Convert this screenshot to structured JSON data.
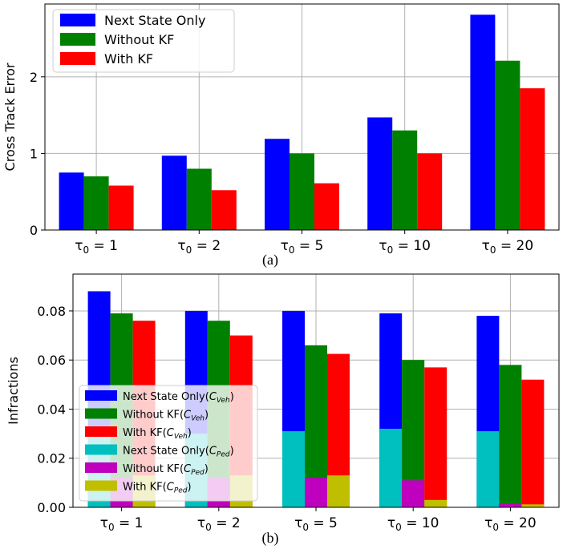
{
  "chart_data": [
    {
      "id": "a",
      "type": "bar",
      "caption": "(a)",
      "title": "",
      "xlabel": "",
      "ylabel": "Cross Track Error",
      "categories": [
        "τ₀ = 1",
        "τ₀ = 2",
        "τ₀ = 5",
        "τ₀ = 10",
        "τ₀ = 20"
      ],
      "ylim": [
        0,
        2.95
      ],
      "yticks": [
        0,
        1,
        2
      ],
      "grid": true,
      "legend_position": "top-left",
      "series": [
        {
          "name": "Next State Only",
          "color": "#0000ff",
          "values": [
            0.75,
            0.97,
            1.19,
            1.47,
            2.81
          ]
        },
        {
          "name": "Without KF",
          "color": "#008000",
          "values": [
            0.7,
            0.8,
            1.0,
            1.3,
            2.21
          ]
        },
        {
          "name": "With KF",
          "color": "#ff0000",
          "values": [
            0.58,
            0.52,
            0.61,
            1.0,
            1.85
          ]
        }
      ]
    },
    {
      "id": "b",
      "type": "bar",
      "caption": "(b)",
      "title": "",
      "xlabel": "",
      "ylabel": "Infractions",
      "categories": [
        "τ₀ = 1",
        "τ₀ = 2",
        "τ₀ = 5",
        "τ₀ = 10",
        "τ₀ = 20"
      ],
      "ylim": [
        0,
        0.095
      ],
      "yticks": [
        0.0,
        0.02,
        0.04,
        0.06,
        0.08
      ],
      "ytick_labels": [
        "0.00",
        "0.02",
        "0.04",
        "0.06",
        "0.08"
      ],
      "grid": true,
      "legend_position": "bottom-left",
      "series": [
        {
          "name": "Next State Only(C_Veh)",
          "label_main": "Next State Only(",
          "label_sub": "Veh",
          "color": "#0000ff",
          "values": [
            0.088,
            0.08,
            0.08,
            0.079,
            0.078
          ]
        },
        {
          "name": "Without KF(C_Veh)",
          "label_main": "Without KF(",
          "label_sub": "Veh",
          "color": "#008000",
          "values": [
            0.079,
            0.076,
            0.066,
            0.06,
            0.058
          ]
        },
        {
          "name": "With KF(C_Veh)",
          "label_main": "With KF(",
          "label_sub": "Veh",
          "color": "#ff0000",
          "values": [
            0.076,
            0.07,
            0.0625,
            0.057,
            0.052
          ]
        },
        {
          "name": "Next State Only(C_Ped)",
          "label_main": "Next State Only(",
          "label_sub": "Ped",
          "color": "#00bfbf",
          "values": [
            0.03,
            0.03,
            0.031,
            0.032,
            0.031
          ]
        },
        {
          "name": "Without KF(C_Ped)",
          "label_main": "Without KF(",
          "label_sub": "Ped",
          "color": "#bf00bf",
          "values": [
            0.012,
            0.012,
            0.012,
            0.011,
            0.0015
          ]
        },
        {
          "name": "With KF(C_Ped)",
          "label_main": "With KF(",
          "label_sub": "Ped",
          "color": "#bfbf00",
          "values": [
            0.013,
            0.013,
            0.013,
            0.003,
            0.0012
          ]
        }
      ],
      "stack_pairs": [
        [
          0,
          3
        ],
        [
          1,
          4
        ],
        [
          2,
          5
        ]
      ]
    }
  ]
}
